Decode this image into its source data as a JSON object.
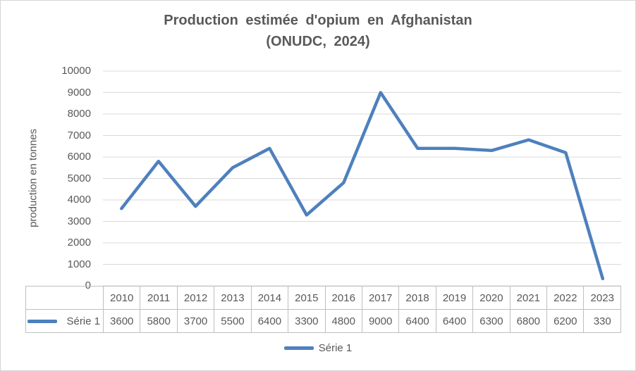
{
  "title": {
    "line1": "Production estimée d'opium en Afghanistan",
    "line2": "(ONUDC, 2024)"
  },
  "chart_data": {
    "type": "line",
    "title": "Production estimée d'opium en Afghanistan (ONUDC, 2024)",
    "categories": [
      "2010",
      "2011",
      "2012",
      "2013",
      "2014",
      "2015",
      "2016",
      "2017",
      "2018",
      "2019",
      "2020",
      "2021",
      "2022",
      "2023"
    ],
    "series": [
      {
        "name": "Série 1",
        "values": [
          3600,
          5800,
          3700,
          5500,
          6400,
          3300,
          4800,
          9000,
          6400,
          6400,
          6300,
          6800,
          6200,
          330
        ],
        "color": "#4e80bd"
      }
    ],
    "xlabel": "",
    "ylabel": "production en tonnes",
    "ylim": [
      0,
      10000
    ],
    "ytick_step": 1000,
    "grid": true,
    "legend_position": "bottom",
    "data_table_shown": true
  },
  "colors": {
    "series_blue": "#4e80bd",
    "gridline": "#d9d9d9",
    "axis_text": "#595959",
    "table_border": "#bfbfbf",
    "frame_border": "#d6d6d6",
    "background": "#ffffff"
  }
}
